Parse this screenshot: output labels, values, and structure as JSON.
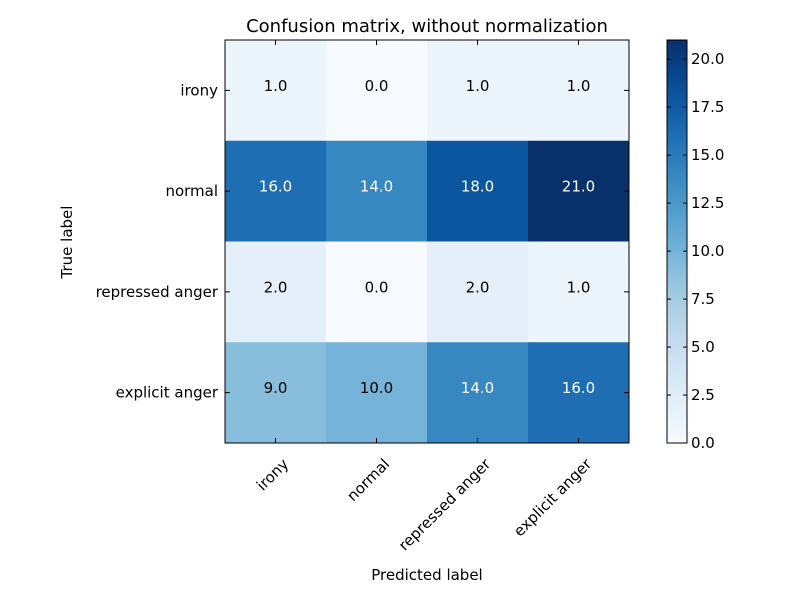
{
  "chart_data": {
    "type": "heatmap",
    "title": "Confusion matrix, without normalization",
    "xlabel": "Predicted label",
    "ylabel": "True label",
    "x_categories": [
      "irony",
      "normal",
      "repressed anger",
      "explicit anger"
    ],
    "y_categories": [
      "irony",
      "normal",
      "repressed anger",
      "explicit anger"
    ],
    "values": [
      [
        1.0,
        0.0,
        1.0,
        1.0
      ],
      [
        16.0,
        14.0,
        18.0,
        21.0
      ],
      [
        2.0,
        0.0,
        2.0,
        1.0
      ],
      [
        9.0,
        10.0,
        14.0,
        16.0
      ]
    ],
    "cell_labels": [
      [
        "1.0",
        "0.0",
        "1.0",
        "1.0"
      ],
      [
        "16.0",
        "14.0",
        "18.0",
        "21.0"
      ],
      [
        "2.0",
        "0.0",
        "2.0",
        "1.0"
      ],
      [
        "9.0",
        "10.0",
        "14.0",
        "16.0"
      ]
    ],
    "colormap": "Blues",
    "colorbar": {
      "range": [
        0,
        21
      ],
      "ticks": [
        0.0,
        2.5,
        5.0,
        7.5,
        10.0,
        12.5,
        15.0,
        17.5,
        20.0
      ],
      "tick_labels": [
        "0.0",
        "2.5",
        "5.0",
        "7.5",
        "10.0",
        "12.5",
        "15.0",
        "17.5",
        "20.0"
      ]
    },
    "x_tick_rotation_deg": 45,
    "text_threshold": 10.5,
    "text_colors": {
      "dark": "#000000",
      "light": "#ffffff"
    }
  }
}
